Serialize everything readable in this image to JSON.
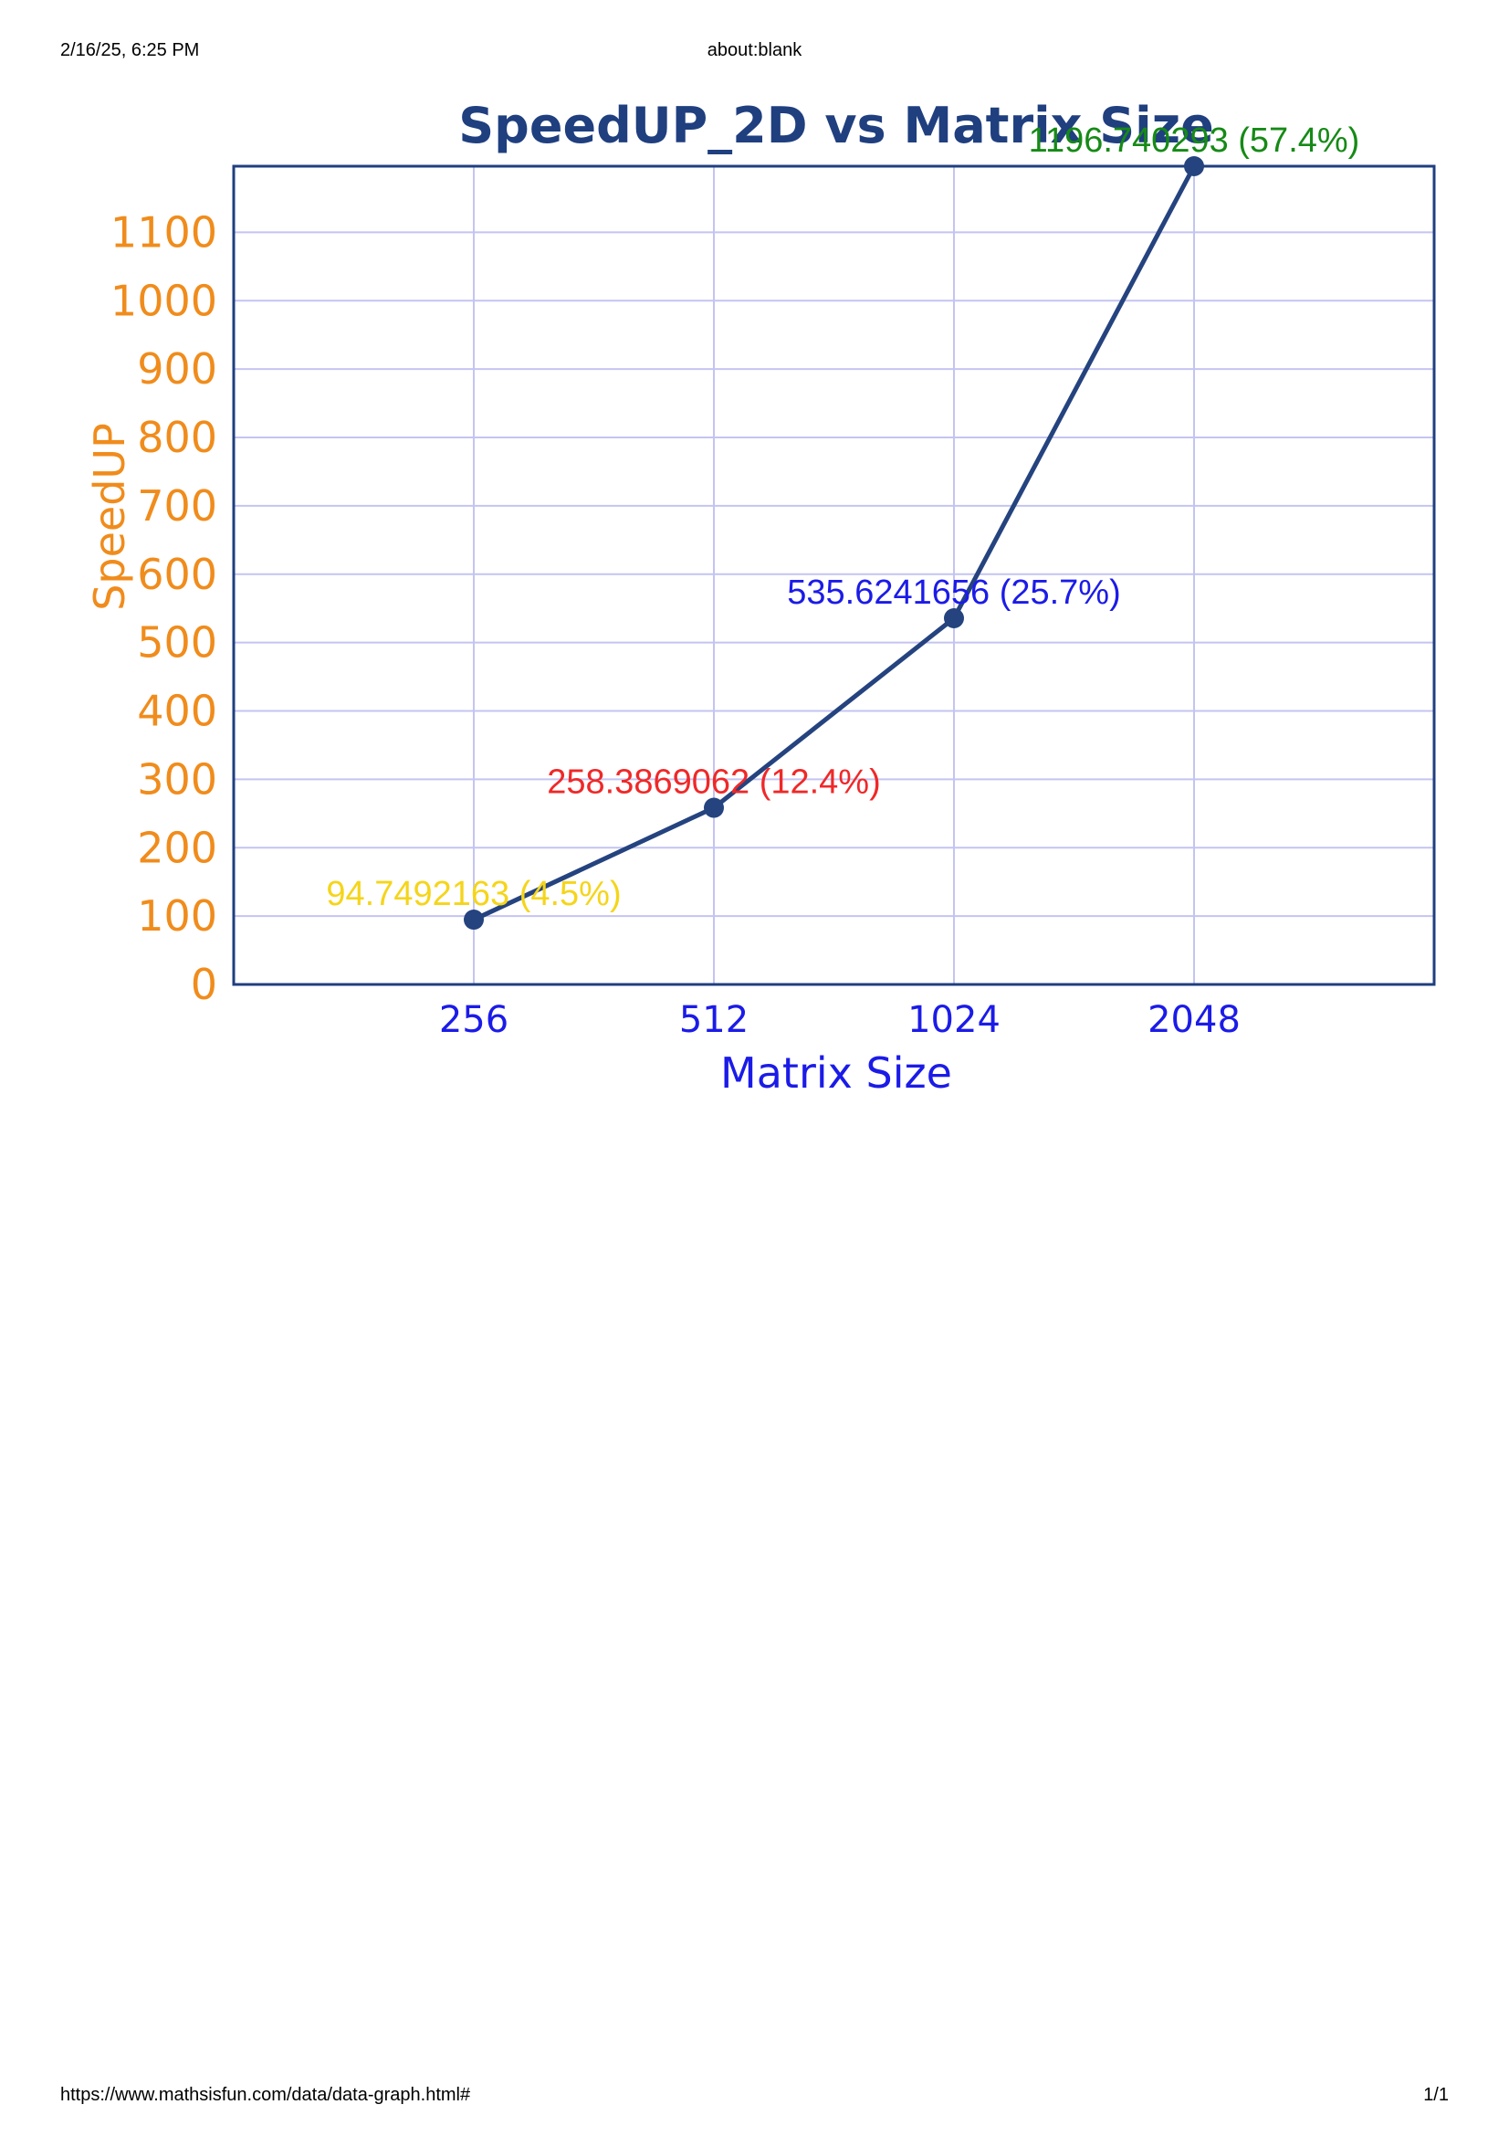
{
  "page": {
    "header_left": "2/16/25, 6:25 PM",
    "header_center": "about:blank",
    "footer_left": "https://www.mathsisfun.com/data/data-graph.html#",
    "footer_right": "1/1"
  },
  "chart_data": {
    "type": "line",
    "title": "SpeedUP_2D vs Matrix Size",
    "xlabel": "Matrix Size",
    "ylabel": "SpeedUP",
    "categories": [
      "256",
      "512",
      "1024",
      "2048"
    ],
    "values": [
      94.7492163,
      258.3869062,
      535.6241656,
      1196.740293
    ],
    "data_labels": [
      "94.7492163  (4.5%)",
      "258.3869062  (12.4%)",
      "535.6241656  (25.7%)",
      "1196.740293  (57.4%)"
    ],
    "label_colors": [
      "#f5d51a",
      "#f02828",
      "#1b1be8",
      "#168a16"
    ],
    "yticks": [
      0,
      100,
      200,
      300,
      400,
      500,
      600,
      700,
      800,
      900,
      1000,
      1100
    ],
    "ylim": [
      0,
      1196.740293
    ],
    "grid": true,
    "colors": {
      "line": "#24437f",
      "frame": "#1f3f7f",
      "grid": "#c4c4f2",
      "ytick": "#f08c1c",
      "xtick": "#1b1be8"
    }
  }
}
